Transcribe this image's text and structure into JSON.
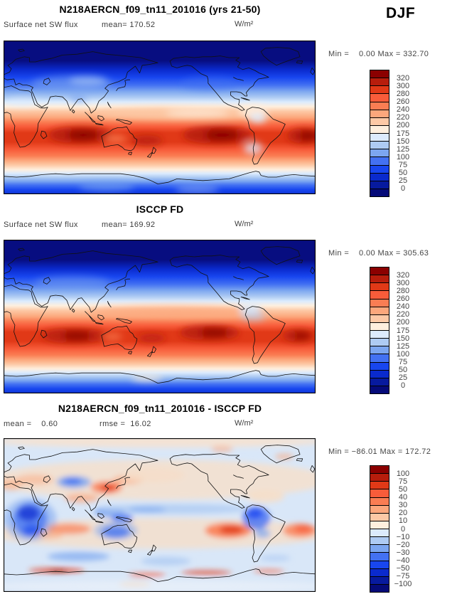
{
  "chart_data": {
    "type": "heatmap",
    "season": "DJF",
    "variable": "Surface net SW flux",
    "units": "W/m²",
    "legend_position": "right",
    "palette_top_to_bottom": [
      "#8B0000",
      "#B71D0C",
      "#E13917",
      "#F85C3A",
      "#FA7D53",
      "#FCA77C",
      "#FDC9A6",
      "#FEEFDE",
      "#DCEBFD",
      "#AECBF3",
      "#7CA6F0",
      "#4371F2",
      "#1846EF",
      "#0A2ACD",
      "#071A9E",
      "#050A78"
    ],
    "panels": [
      {
        "title": "N218AERCN_f09_tn11_201016 (yrs 21-50)",
        "var_label": "Surface net SW flux",
        "stats": "mean= 170.52",
        "mean": 170.52,
        "units": "W/m²",
        "min": 0.0,
        "max": 332.7,
        "minmax_label": "Min =    0.00 Max = 332.70",
        "levels": [
          320,
          300,
          280,
          260,
          240,
          220,
          200,
          175,
          150,
          125,
          100,
          75,
          50,
          25,
          0
        ],
        "tick_labels": [
          "320",
          "300",
          "280",
          "260",
          "240",
          "220",
          "200",
          "175",
          "150",
          "125",
          "100",
          "75",
          "50",
          "25",
          "0"
        ]
      },
      {
        "title": "ISCCP FD",
        "var_label": "Surface net SW flux",
        "stats": "mean= 169.92",
        "mean": 169.92,
        "units": "W/m²",
        "min": 0.0,
        "max": 305.63,
        "minmax_label": "Min =    0.00 Max = 305.63",
        "levels": [
          320,
          300,
          280,
          260,
          240,
          220,
          200,
          175,
          150,
          125,
          100,
          75,
          50,
          25,
          0
        ],
        "tick_labels": [
          "320",
          "300",
          "280",
          "260",
          "240",
          "220",
          "200",
          "175",
          "150",
          "125",
          "100",
          "75",
          "50",
          "25",
          "0"
        ]
      },
      {
        "title": "N218AERCN_f09_tn11_201016 - ISCCP FD",
        "stats": "mean =    0.60",
        "stats2": "rmse =  16.02",
        "mean": 0.6,
        "rmse": 16.02,
        "units": "W/m²",
        "min": -86.01,
        "max": 172.72,
        "minmax_label": "Min = −86.01 Max = 172.72",
        "levels": [
          100,
          75,
          50,
          40,
          30,
          20,
          10,
          0,
          -10,
          -20,
          -30,
          -40,
          -50,
          -75,
          -100
        ],
        "tick_labels": [
          "100",
          "75",
          "50",
          "40",
          "30",
          "20",
          "10",
          "0",
          "−10",
          "−20",
          "−30",
          "−40",
          "−50",
          "−75",
          "−100"
        ]
      }
    ],
    "field_approx": [
      {
        "blur": 5,
        "gradient": [
          [
            0,
            "#070D80"
          ],
          [
            0.13,
            "#070D80"
          ],
          [
            0.19,
            "#0A2ACD"
          ],
          [
            0.24,
            "#1846EF"
          ],
          [
            0.29,
            "#4371F2"
          ],
          [
            0.33,
            "#7CA6F0"
          ],
          [
            0.37,
            "#AECBF3"
          ],
          [
            0.4,
            "#DCEBFD"
          ],
          [
            0.43,
            "#FEEFDE"
          ],
          [
            0.46,
            "#FDC9A6"
          ],
          [
            0.5,
            "#FCA77C"
          ],
          [
            0.53,
            "#FA7D53"
          ],
          [
            0.56,
            "#F85C3A"
          ],
          [
            0.6,
            "#E13917"
          ],
          [
            0.66,
            "#E13917"
          ],
          [
            0.71,
            "#F85C3A"
          ],
          [
            0.75,
            "#FA7D53"
          ],
          [
            0.78,
            "#FCA77C"
          ],
          [
            0.81,
            "#FDC9A6"
          ],
          [
            0.84,
            "#FEEFDE"
          ],
          [
            0.865,
            "#DCEBFD"
          ],
          [
            0.89,
            "#AECBF3"
          ],
          [
            0.915,
            "#7CA6F0"
          ],
          [
            0.94,
            "#4371F2"
          ],
          [
            0.97,
            "#1846EF"
          ],
          [
            1,
            "#0F35D8"
          ]
        ],
        "blobs": [
          [
            0.55,
            0.475,
            0.26,
            0.04,
            "#FDC9A6",
            0.85
          ],
          [
            0.62,
            0.47,
            0.1,
            0.025,
            "#FEEFDE",
            0.7
          ],
          [
            0.8,
            0.46,
            0.045,
            0.045,
            "#FEEFDE",
            0.85
          ],
          [
            0.815,
            0.505,
            0.028,
            0.03,
            "#DCEBFD",
            0.9
          ],
          [
            0.245,
            0.615,
            0.1,
            0.055,
            "#B71D0C",
            0.95
          ],
          [
            0.255,
            0.615,
            0.05,
            0.032,
            "#8B0000",
            0.95
          ],
          [
            0.46,
            0.65,
            0.05,
            0.033,
            "#B71D0C",
            0.85
          ],
          [
            0.685,
            0.615,
            0.11,
            0.058,
            "#B71D0C",
            0.95
          ],
          [
            0.7,
            0.615,
            0.055,
            0.034,
            "#8B0000",
            0.95
          ],
          [
            0.965,
            0.62,
            0.055,
            0.05,
            "#B71D0C",
            0.95
          ],
          [
            0.975,
            0.62,
            0.028,
            0.028,
            "#8B0000",
            0.9
          ],
          [
            0.36,
            0.64,
            0.035,
            0.028,
            "#FA7D53",
            0.75
          ],
          [
            0.22,
            0.28,
            0.13,
            0.05,
            "#7CA6F0",
            0.55
          ],
          [
            0.27,
            0.26,
            0.06,
            0.03,
            "#AECBF3",
            0.6
          ],
          [
            0.24,
            0.375,
            0.03,
            0.02,
            "#7CA6F0",
            0.85
          ],
          [
            0.06,
            0.4,
            0.05,
            0.025,
            "#DCEBFD",
            0.6
          ],
          [
            0.66,
            0.28,
            0.09,
            0.045,
            "#4371F2",
            0.45
          ],
          [
            0.8,
            0.7,
            0.03,
            0.04,
            "#DCEBFD",
            0.75
          ],
          [
            0.33,
            0.95,
            0.09,
            0.03,
            "#7CA6F0",
            0.6
          ],
          [
            0.62,
            0.97,
            0.07,
            0.025,
            "#AECBF3",
            0.5
          ]
        ]
      },
      {
        "blur": 5,
        "gradient": [
          [
            0,
            "#070D80"
          ],
          [
            0.13,
            "#070D80"
          ],
          [
            0.19,
            "#0A2ACD"
          ],
          [
            0.24,
            "#1846EF"
          ],
          [
            0.29,
            "#4371F2"
          ],
          [
            0.33,
            "#7CA6F0"
          ],
          [
            0.37,
            "#AECBF3"
          ],
          [
            0.4,
            "#DCEBFD"
          ],
          [
            0.43,
            "#FEEFDE"
          ],
          [
            0.46,
            "#FDC9A6"
          ],
          [
            0.5,
            "#FCA77C"
          ],
          [
            0.53,
            "#FA7D53"
          ],
          [
            0.56,
            "#F85C3A"
          ],
          [
            0.6,
            "#E13917"
          ],
          [
            0.66,
            "#E13917"
          ],
          [
            0.71,
            "#F85C3A"
          ],
          [
            0.75,
            "#FA7D53"
          ],
          [
            0.78,
            "#FCA77C"
          ],
          [
            0.81,
            "#FDC9A6"
          ],
          [
            0.84,
            "#FEEFDE"
          ],
          [
            0.865,
            "#DCEBFD"
          ],
          [
            0.89,
            "#AECBF3"
          ],
          [
            0.915,
            "#7CA6F0"
          ],
          [
            0.94,
            "#4371F2"
          ],
          [
            0.97,
            "#1846EF"
          ],
          [
            1,
            "#0F35D8"
          ]
        ],
        "blobs": [
          [
            0.55,
            0.47,
            0.28,
            0.04,
            "#FCA77C",
            0.8
          ],
          [
            0.79,
            0.45,
            0.035,
            0.035,
            "#DCEBFD",
            0.9
          ],
          [
            0.8,
            0.5,
            0.04,
            0.03,
            "#AECBF3",
            0.6
          ],
          [
            0.225,
            0.625,
            0.1,
            0.05,
            "#B71D0C",
            0.9
          ],
          [
            0.235,
            0.625,
            0.045,
            0.027,
            "#8B0000",
            0.85
          ],
          [
            0.475,
            0.64,
            0.045,
            0.03,
            "#B71D0C",
            0.7
          ],
          [
            0.66,
            0.605,
            0.095,
            0.05,
            "#B71D0C",
            0.9
          ],
          [
            0.675,
            0.605,
            0.045,
            0.028,
            "#8B0000",
            0.85
          ],
          [
            0.945,
            0.625,
            0.05,
            0.04,
            "#B71D0C",
            0.9
          ],
          [
            0.955,
            0.625,
            0.025,
            0.022,
            "#8B0000",
            0.75
          ],
          [
            0.22,
            0.28,
            0.12,
            0.045,
            "#7CA6F0",
            0.45
          ],
          [
            0.46,
            0.9,
            0.05,
            0.022,
            "#FEEFDE",
            0.75
          ],
          [
            0.35,
            0.63,
            0.03,
            0.025,
            "#FA7D53",
            0.7
          ]
        ]
      },
      {
        "blur": 4,
        "bg": "#D9E7F8",
        "blobs": [
          [
            0.5,
            0.02,
            0.55,
            0.04,
            "#F6E2D0",
            0.9
          ],
          [
            0.5,
            0.27,
            0.55,
            0.13,
            "#F6E0CC",
            0.85
          ],
          [
            0.5,
            0.62,
            0.55,
            0.1,
            "#F6DFC9",
            0.8
          ],
          [
            0.5,
            0.965,
            0.55,
            0.04,
            "#E6EEF9",
            0.95
          ],
          [
            0.085,
            0.53,
            0.085,
            0.14,
            "#7CA6F0",
            0.55
          ],
          [
            0.085,
            0.53,
            0.055,
            0.11,
            "#4371F2",
            0.75
          ],
          [
            0.08,
            0.49,
            0.035,
            0.05,
            "#0A2ACD",
            0.7
          ],
          [
            0.09,
            0.6,
            0.028,
            0.04,
            "#1846EF",
            0.6
          ],
          [
            0.02,
            0.3,
            0.04,
            0.04,
            "#FCA77C",
            0.55
          ],
          [
            0.1,
            0.27,
            0.06,
            0.035,
            "#FCA77C",
            0.5
          ],
          [
            0.225,
            0.285,
            0.055,
            0.04,
            "#7CA6F0",
            0.85
          ],
          [
            0.22,
            0.28,
            0.03,
            0.022,
            "#4371F2",
            0.85
          ],
          [
            0.33,
            0.32,
            0.05,
            0.04,
            "#FA7D53",
            0.85
          ],
          [
            0.335,
            0.325,
            0.025,
            0.022,
            "#E13917",
            0.85
          ],
          [
            0.4,
            0.27,
            0.05,
            0.03,
            "#FCA77C",
            0.6
          ],
          [
            0.25,
            0.39,
            0.055,
            0.03,
            "#FCA77C",
            0.7
          ],
          [
            0.34,
            0.48,
            0.05,
            0.035,
            "#7CA6F0",
            0.85
          ],
          [
            0.38,
            0.52,
            0.035,
            0.028,
            "#4371F2",
            0.8
          ],
          [
            0.36,
            0.61,
            0.045,
            0.04,
            "#1846EF",
            0.8
          ],
          [
            0.36,
            0.6,
            0.07,
            0.06,
            "#7CA6F0",
            0.5
          ],
          [
            0.21,
            0.59,
            0.07,
            0.035,
            "#FA7D53",
            0.7
          ],
          [
            0.15,
            0.63,
            0.04,
            0.025,
            "#FCA77C",
            0.6
          ],
          [
            0.55,
            0.46,
            0.24,
            0.032,
            "#AECBF3",
            0.8
          ],
          [
            0.46,
            0.465,
            0.06,
            0.02,
            "#7CA6F0",
            0.6
          ],
          [
            0.72,
            0.6,
            0.075,
            0.05,
            "#FA7D53",
            0.9
          ],
          [
            0.73,
            0.595,
            0.038,
            0.028,
            "#E13917",
            0.85
          ],
          [
            0.81,
            0.52,
            0.045,
            0.075,
            "#4371F2",
            0.8
          ],
          [
            0.805,
            0.49,
            0.025,
            0.035,
            "#1846EF",
            0.75
          ],
          [
            0.83,
            0.62,
            0.025,
            0.03,
            "#7CA6F0",
            0.7
          ],
          [
            0.95,
            0.6,
            0.055,
            0.045,
            "#FA7D53",
            0.8
          ],
          [
            0.96,
            0.59,
            0.028,
            0.024,
            "#F85C3A",
            0.8
          ],
          [
            0.84,
            0.38,
            0.06,
            0.04,
            "#F6DFC9",
            0.9
          ],
          [
            0.48,
            0.24,
            0.1,
            0.05,
            "#F6DFC9",
            0.8
          ],
          [
            0.7,
            0.07,
            0.035,
            0.02,
            "#FCA77C",
            0.6
          ],
          [
            0.9,
            0.12,
            0.03,
            0.02,
            "#FCA77C",
            0.6
          ],
          [
            0.24,
            0.77,
            0.1,
            0.03,
            "#7CA6F0",
            0.7
          ],
          [
            0.52,
            0.8,
            0.08,
            0.028,
            "#AECBF3",
            0.8
          ],
          [
            0.87,
            0.78,
            0.05,
            0.02,
            "#AECBF3",
            0.7
          ],
          [
            0.17,
            0.86,
            0.09,
            0.016,
            "#E13917",
            0.8
          ],
          [
            0.175,
            0.865,
            0.03,
            0.01,
            "#8B0000",
            0.7
          ],
          [
            0.46,
            0.89,
            0.06,
            0.014,
            "#F85C3A",
            0.75
          ],
          [
            0.65,
            0.875,
            0.08,
            0.015,
            "#E13917",
            0.75
          ],
          [
            0.85,
            0.865,
            0.05,
            0.013,
            "#F85C3A",
            0.65
          ],
          [
            0.42,
            0.95,
            0.05,
            0.018,
            "#F6DFC9",
            0.6
          ]
        ]
      }
    ]
  }
}
